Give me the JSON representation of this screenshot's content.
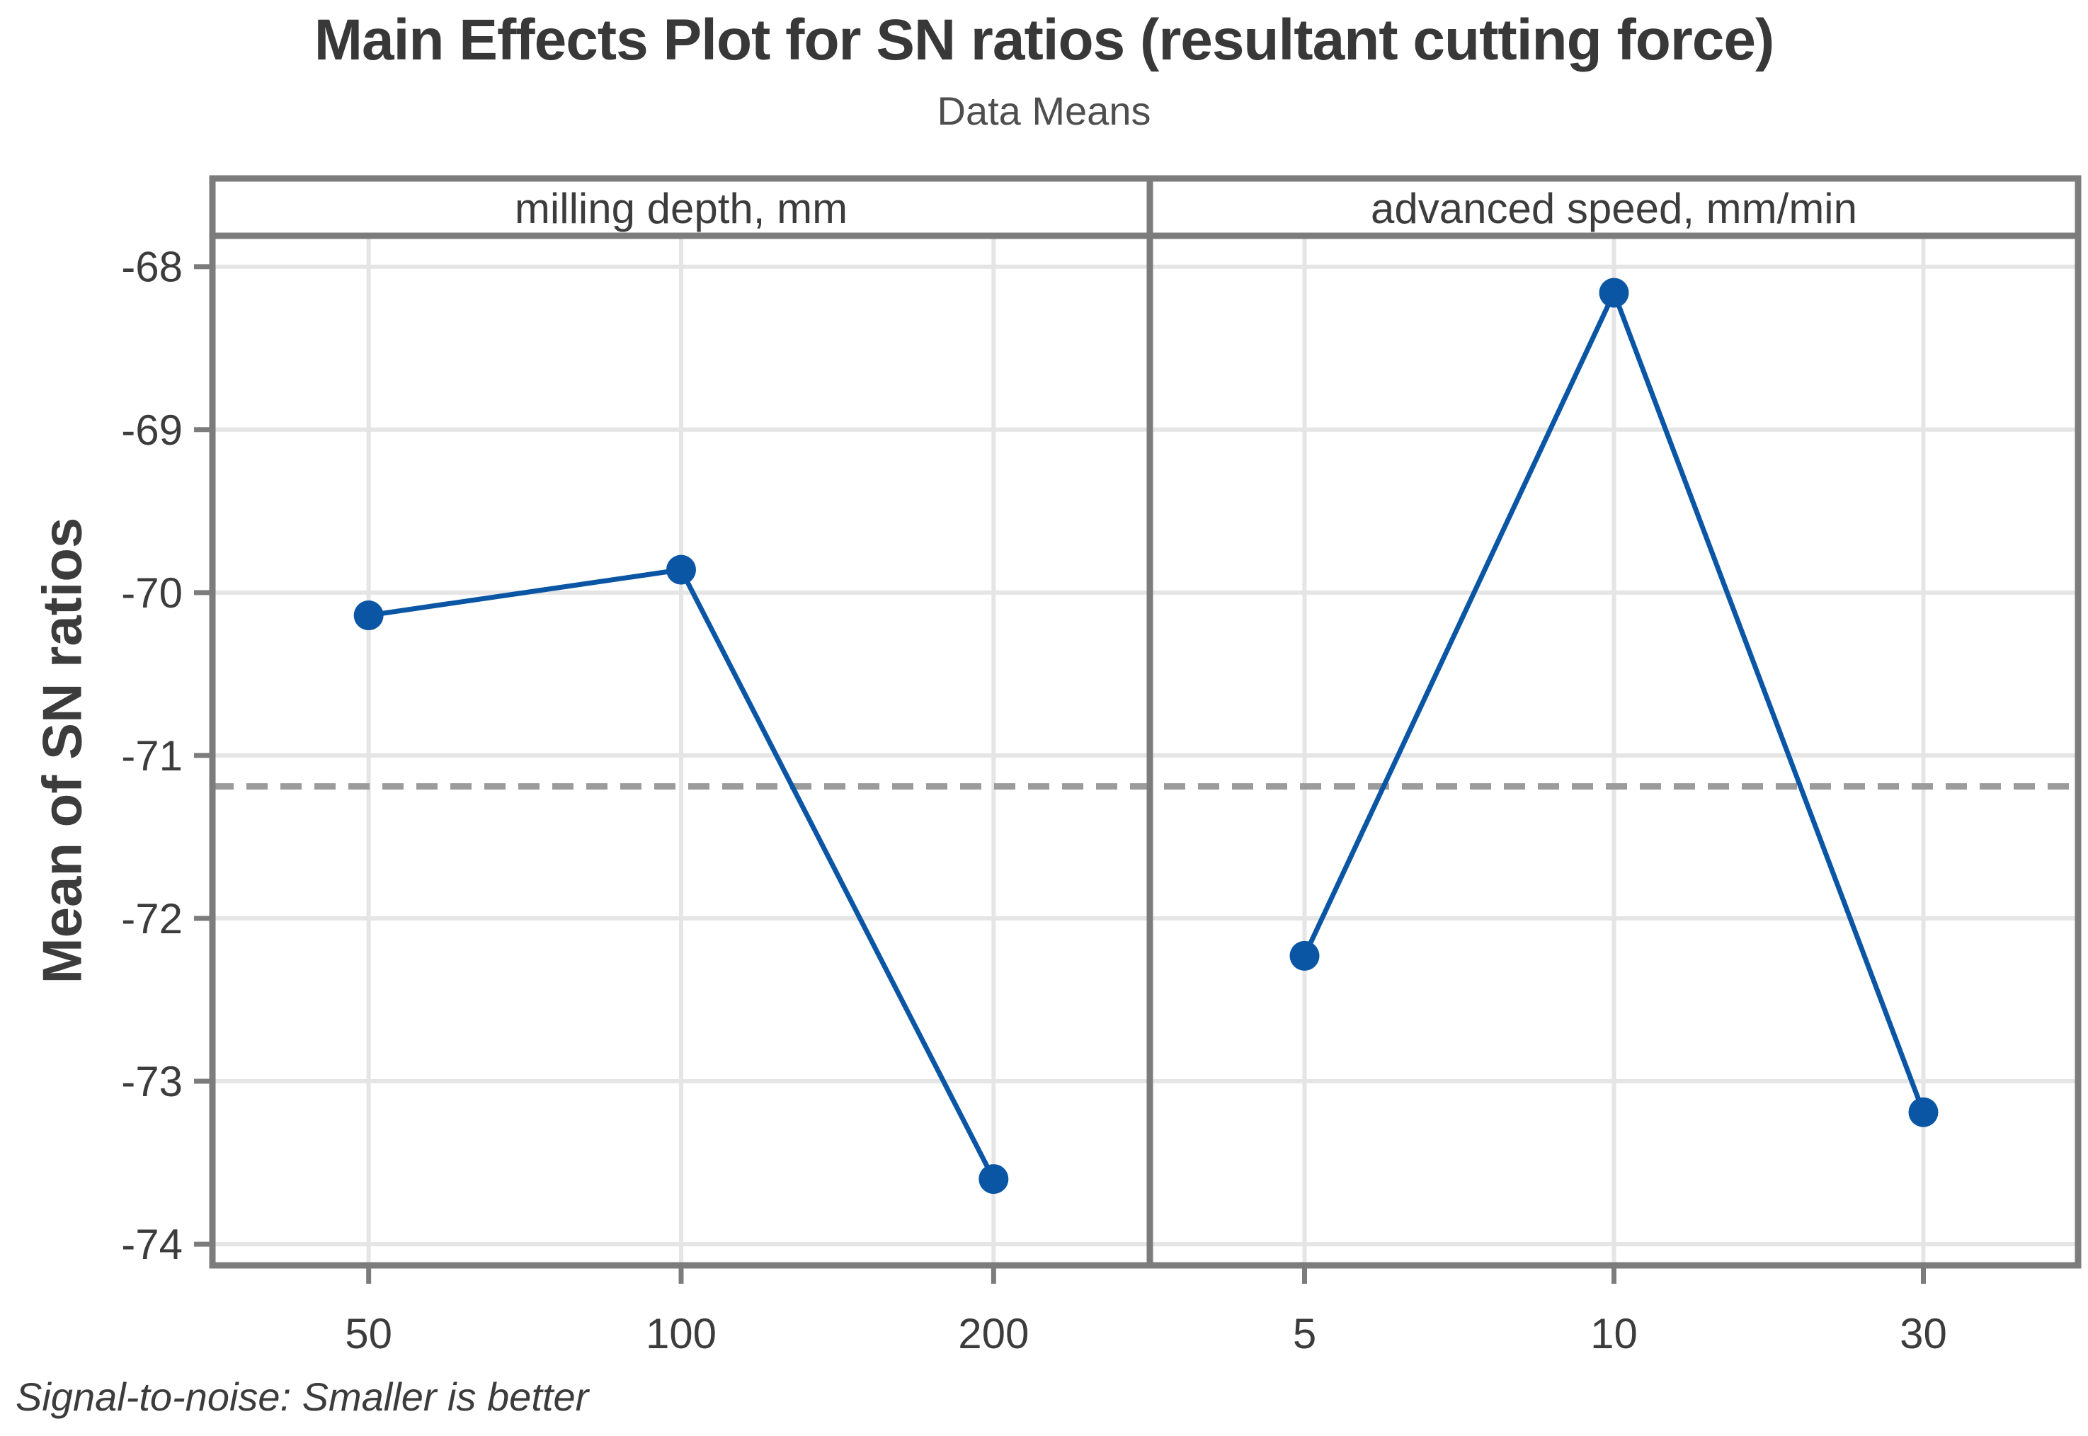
{
  "title": "Main Effects Plot for SN ratios (resultant cutting force)",
  "subtitle": "Data Means",
  "y_axis_label": "Mean of SN ratios",
  "footer_note": "Signal-to-noise: Smaller is better",
  "colors": {
    "series_blue": "#0B56A4",
    "gridline": "#E5E5E5",
    "frame": "#7C7C7C",
    "reference_line": "#9B9B9B",
    "text_dark": "#3C3C3C",
    "title_text": "#383838",
    "subtitle_text": "#4E4E4E",
    "background": "#FFFFFF"
  },
  "chart_data": {
    "type": "line",
    "title": "Main Effects Plot for SN ratios (resultant cutting force)",
    "subtitle": "Data Means",
    "ylabel": "Mean of SN ratios",
    "ylim": [
      -74.13,
      -67.81
    ],
    "yticks": [
      -68,
      -69,
      -70,
      -71,
      -72,
      -73,
      -74
    ],
    "grid": true,
    "legend": "none",
    "reference_line": {
      "value": -71.19,
      "style": "dashed"
    },
    "series_color": "#0B56A4",
    "marker": "filled-circle",
    "panels": [
      {
        "header": "milling depth, mm",
        "categories": [
          "50",
          "100",
          "200"
        ],
        "values": [
          -70.14,
          -69.86,
          -73.6
        ]
      },
      {
        "header": "advanced speed, mm/min",
        "categories": [
          "5",
          "10",
          "30"
        ],
        "values": [
          -72.23,
          -68.16,
          -73.19
        ]
      }
    ],
    "footnote": "Signal-to-noise: Smaller is better"
  }
}
